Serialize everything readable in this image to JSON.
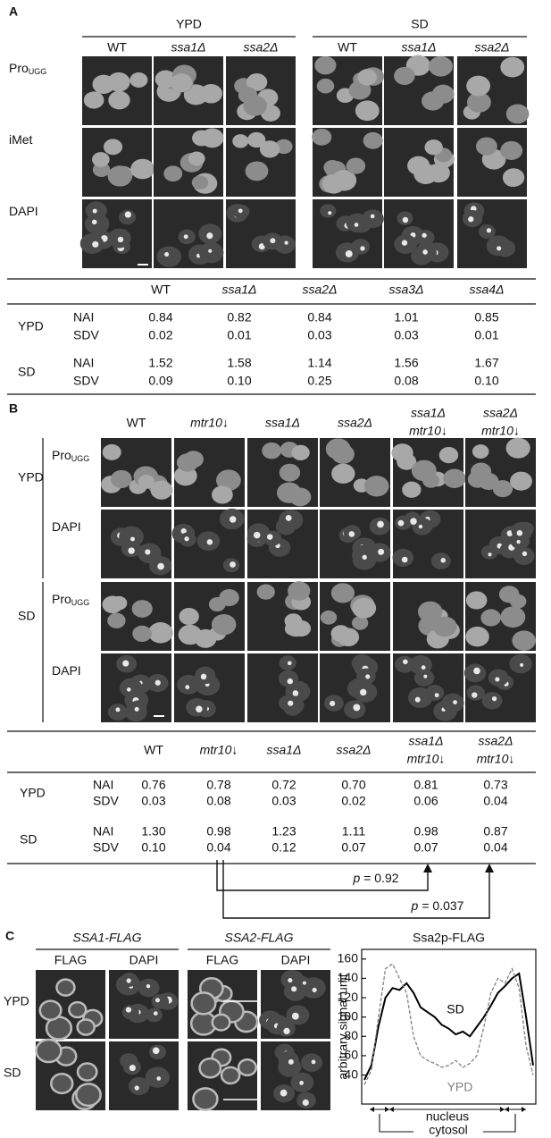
{
  "panel_a": {
    "label": "A",
    "groups": [
      "YPD",
      "SD"
    ],
    "strains": [
      "WT",
      "ssa1Δ",
      "ssa2Δ"
    ],
    "rows": [
      {
        "main": "Pro",
        "sub": "UGG"
      },
      {
        "main": "iMet"
      },
      {
        "main": "DAPI"
      }
    ],
    "table": {
      "columns": [
        "WT",
        "ssa1Δ",
        "ssa2Δ",
        "ssa3Δ",
        "ssa4Δ"
      ],
      "groups": [
        {
          "name": "YPD",
          "rows": [
            {
              "label": "NAI",
              "values": [
                "0.84",
                "0.82",
                "0.84",
                "1.01",
                "0.85"
              ]
            },
            {
              "label": "SDV",
              "values": [
                "0.02",
                "0.01",
                "0.03",
                "0.03",
                "0.01"
              ]
            }
          ]
        },
        {
          "name": "SD",
          "rows": [
            {
              "label": "NAI",
              "values": [
                "1.52",
                "1.58",
                "1.14",
                "1.56",
                "1.67"
              ]
            },
            {
              "label": "SDV",
              "values": [
                "0.09",
                "0.10",
                "0.25",
                "0.08",
                "0.10"
              ]
            }
          ]
        }
      ]
    }
  },
  "panel_b": {
    "label": "B",
    "strains": [
      [
        "WT"
      ],
      [
        "mtr10↓"
      ],
      [
        "ssa1Δ"
      ],
      [
        "ssa2Δ"
      ],
      [
        "ssa1Δ",
        "mtr10↓"
      ],
      [
        "ssa2Δ",
        "mtr10↓"
      ]
    ],
    "groups": [
      "YPD",
      "SD"
    ],
    "rows": [
      {
        "main": "Pro",
        "sub": "UGG"
      },
      {
        "main": "DAPI"
      }
    ],
    "table": {
      "groups": [
        {
          "name": "YPD",
          "rows": [
            {
              "label": "NAI",
              "values": [
                "0.76",
                "0.78",
                "0.72",
                "0.70",
                "0.81",
                "0.73"
              ]
            },
            {
              "label": "SDV",
              "values": [
                "0.03",
                "0.08",
                "0.03",
                "0.02",
                "0.06",
                "0.04"
              ]
            }
          ]
        },
        {
          "name": "SD",
          "rows": [
            {
              "label": "NAI",
              "values": [
                "1.30",
                "0.98",
                "1.23",
                "1.11",
                "0.98",
                "0.87"
              ]
            },
            {
              "label": "SDV",
              "values": [
                "0.10",
                "0.04",
                "0.12",
                "0.07",
                "0.07",
                "0.04"
              ]
            }
          ]
        }
      ]
    },
    "p_values": [
      {
        "symbol": "p",
        "text": "= 0.92"
      },
      {
        "symbol": "p",
        "text": "= 0.037"
      }
    ]
  },
  "panel_c": {
    "label": "C",
    "constructs": [
      "SSA1-FLAG",
      "SSA2-FLAG"
    ],
    "channels": [
      "FLAG",
      "DAPI"
    ],
    "rows": [
      "YPD",
      "SD"
    ]
  },
  "chart_data": {
    "type": "line",
    "title": "Ssa2p-FLAG",
    "y_label": "arbitrary signal unit",
    "ylim": [
      10,
      170
    ],
    "yticks": [
      40,
      60,
      80,
      100,
      120,
      140,
      160
    ],
    "series": [
      {
        "name": "SD",
        "color": "#000000",
        "dashed": false,
        "values": [
          35,
          50,
          90,
          120,
          130,
          128,
          135,
          125,
          110,
          105,
          100,
          92,
          88,
          82,
          85,
          80,
          90,
          100,
          112,
          125,
          132,
          140,
          145,
          100,
          50
        ]
      },
      {
        "name": "YPD",
        "color": "#808080",
        "dashed": true,
        "values": [
          30,
          45,
          100,
          150,
          155,
          140,
          125,
          80,
          60,
          55,
          52,
          48,
          50,
          55,
          48,
          52,
          60,
          90,
          125,
          140,
          135,
          150,
          130,
          70,
          40
        ]
      }
    ],
    "annotations": [
      "nucleus",
      "cytosol"
    ]
  }
}
